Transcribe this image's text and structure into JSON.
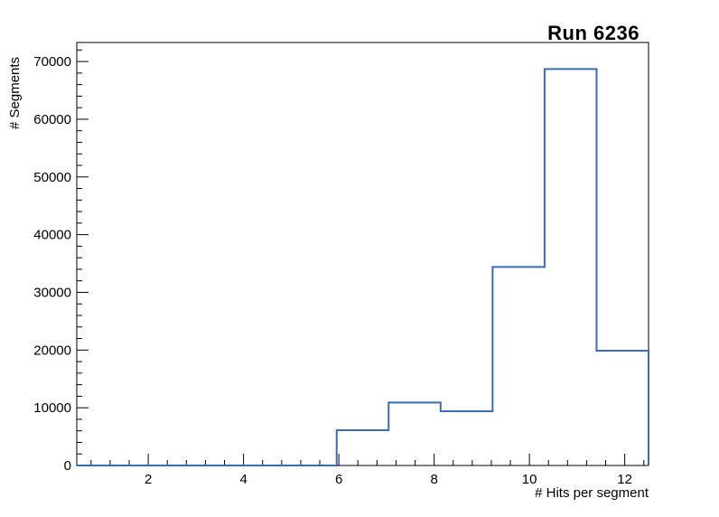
{
  "chart_data": {
    "type": "step-histogram",
    "title": "Run 6236",
    "xlabel": "# Hits per segment",
    "ylabel": "# Segments",
    "xlim": [
      0.5,
      12.5
    ],
    "ylim": [
      0,
      73300
    ],
    "x_major_ticks": [
      2,
      4,
      6,
      8,
      10,
      12
    ],
    "x_minor_step": 0.4,
    "y_major_ticks": [
      0,
      10000,
      20000,
      30000,
      40000,
      50000,
      60000,
      70000
    ],
    "y_minor_step": 2000,
    "bin_edges": [
      0.5,
      1.591,
      2.682,
      3.773,
      4.864,
      5.955,
      7.045,
      8.136,
      9.227,
      10.318,
      11.409,
      12.5
    ],
    "counts": [
      0,
      0,
      0,
      0,
      0,
      6100,
      10900,
      9400,
      34400,
      68700,
      19900
    ],
    "line_color": "#3b6bb5",
    "frame_color": "#000000",
    "background_color": "#ffffff",
    "grid": "off",
    "legend": "none"
  }
}
